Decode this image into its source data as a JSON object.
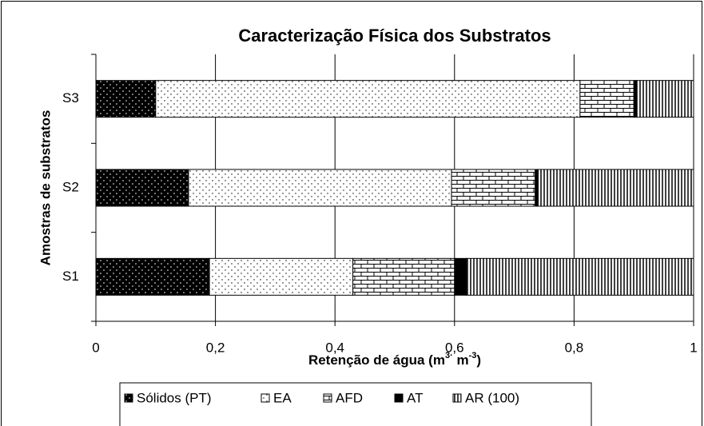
{
  "chart_data": {
    "type": "stacked-barh",
    "title": "Caracterização Física dos Substratos",
    "ylabel": "Amostras de substratos",
    "xlabel_parts": [
      "Retenção de água (m",
      "3·",
      " m",
      "-3",
      ")"
    ],
    "categories": [
      "S1",
      "S2",
      "S3"
    ],
    "series": [
      {
        "name": "Sólidos (PT)",
        "color": "#000000",
        "pattern": "dots-dark",
        "values": [
          0.19,
          0.155,
          0.1
        ]
      },
      {
        "name": "EA",
        "color": "#ffffff",
        "pattern": "dots",
        "values": [
          0.24,
          0.44,
          0.71
        ]
      },
      {
        "name": "AFD",
        "color": "#ffffff",
        "pattern": "brick",
        "values": [
          0.17,
          0.14,
          0.09
        ]
      },
      {
        "name": "AT",
        "color": "#000000",
        "pattern": "solid",
        "values": [
          0.02,
          0.005,
          0.005
        ]
      },
      {
        "name": "AR (100)",
        "color": "#ffffff",
        "pattern": "vertical-lines",
        "values": [
          0.38,
          0.26,
          0.095
        ]
      }
    ],
    "xlim": [
      0,
      1
    ],
    "xticks": [
      0,
      {
        "value": 0.2,
        "label": "0,2"
      },
      {
        "value": 0.4,
        "label": "0,4"
      },
      {
        "value": 0.6,
        "label": "0,6"
      },
      {
        "value": 0.8,
        "label": "0,8"
      },
      1
    ],
    "grid": true,
    "legend": "bottom"
  }
}
